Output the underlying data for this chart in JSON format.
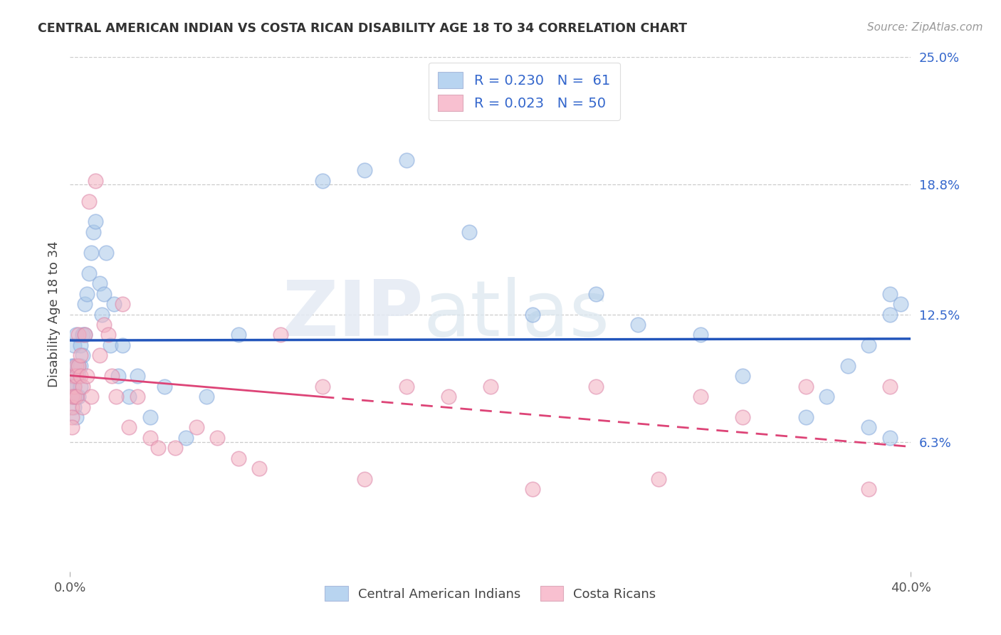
{
  "title": "CENTRAL AMERICAN INDIAN VS COSTA RICAN DISABILITY AGE 18 TO 34 CORRELATION CHART",
  "source": "Source: ZipAtlas.com",
  "ylabel": "Disability Age 18 to 34",
  "xlabel": "",
  "xlim": [
    0.0,
    0.4
  ],
  "ylim": [
    0.0,
    0.25
  ],
  "xticks": [
    0.0,
    0.4
  ],
  "xticklabels": [
    "0.0%",
    "40.0%"
  ],
  "yticks": [
    0.063,
    0.125,
    0.188,
    0.25
  ],
  "yticklabels": [
    "6.3%",
    "12.5%",
    "18.8%",
    "25.0%"
  ],
  "grid_color": "#cccccc",
  "background_color": "#ffffff",
  "blue_color": "#a8c8e8",
  "pink_color": "#f4b0c0",
  "blue_line_color": "#2255bb",
  "pink_line_color": "#dd4477",
  "legend_blue_face": "#b8d4f0",
  "legend_pink_face": "#f8c0d0",
  "watermark_zip": "ZIP",
  "watermark_atlas": "atlas",
  "blue_scatter_x": [
    0.001,
    0.001,
    0.001,
    0.001,
    0.002,
    0.002,
    0.002,
    0.002,
    0.002,
    0.003,
    0.003,
    0.003,
    0.003,
    0.004,
    0.004,
    0.004,
    0.005,
    0.005,
    0.005,
    0.006,
    0.006,
    0.007,
    0.007,
    0.008,
    0.009,
    0.01,
    0.011,
    0.012,
    0.014,
    0.015,
    0.016,
    0.017,
    0.019,
    0.021,
    0.023,
    0.025,
    0.028,
    0.032,
    0.038,
    0.045,
    0.055,
    0.065,
    0.08,
    0.12,
    0.14,
    0.16,
    0.19,
    0.22,
    0.25,
    0.27,
    0.3,
    0.32,
    0.35,
    0.38,
    0.39,
    0.39,
    0.395,
    0.39,
    0.38,
    0.37,
    0.36
  ],
  "blue_scatter_y": [
    0.09,
    0.1,
    0.095,
    0.085,
    0.11,
    0.1,
    0.09,
    0.085,
    0.08,
    0.115,
    0.095,
    0.085,
    0.075,
    0.1,
    0.095,
    0.085,
    0.11,
    0.1,
    0.09,
    0.115,
    0.105,
    0.13,
    0.115,
    0.135,
    0.145,
    0.155,
    0.165,
    0.17,
    0.14,
    0.125,
    0.135,
    0.155,
    0.11,
    0.13,
    0.095,
    0.11,
    0.085,
    0.095,
    0.075,
    0.09,
    0.065,
    0.085,
    0.115,
    0.19,
    0.195,
    0.2,
    0.165,
    0.125,
    0.135,
    0.12,
    0.115,
    0.095,
    0.075,
    0.07,
    0.065,
    0.125,
    0.13,
    0.135,
    0.11,
    0.1,
    0.085
  ],
  "pink_scatter_x": [
    0.001,
    0.001,
    0.001,
    0.001,
    0.002,
    0.002,
    0.002,
    0.003,
    0.003,
    0.003,
    0.004,
    0.004,
    0.005,
    0.005,
    0.006,
    0.006,
    0.007,
    0.008,
    0.009,
    0.01,
    0.012,
    0.014,
    0.016,
    0.018,
    0.02,
    0.022,
    0.025,
    0.028,
    0.032,
    0.038,
    0.042,
    0.05,
    0.06,
    0.07,
    0.08,
    0.09,
    0.1,
    0.12,
    0.14,
    0.16,
    0.18,
    0.2,
    0.22,
    0.25,
    0.28,
    0.3,
    0.32,
    0.35,
    0.38,
    0.39
  ],
  "pink_scatter_y": [
    0.085,
    0.08,
    0.075,
    0.07,
    0.095,
    0.09,
    0.085,
    0.1,
    0.095,
    0.085,
    0.115,
    0.1,
    0.105,
    0.095,
    0.09,
    0.08,
    0.115,
    0.095,
    0.18,
    0.085,
    0.19,
    0.105,
    0.12,
    0.115,
    0.095,
    0.085,
    0.13,
    0.07,
    0.085,
    0.065,
    0.06,
    0.06,
    0.07,
    0.065,
    0.055,
    0.05,
    0.115,
    0.09,
    0.045,
    0.09,
    0.085,
    0.09,
    0.04,
    0.09,
    0.045,
    0.085,
    0.075,
    0.09,
    0.04,
    0.09
  ]
}
